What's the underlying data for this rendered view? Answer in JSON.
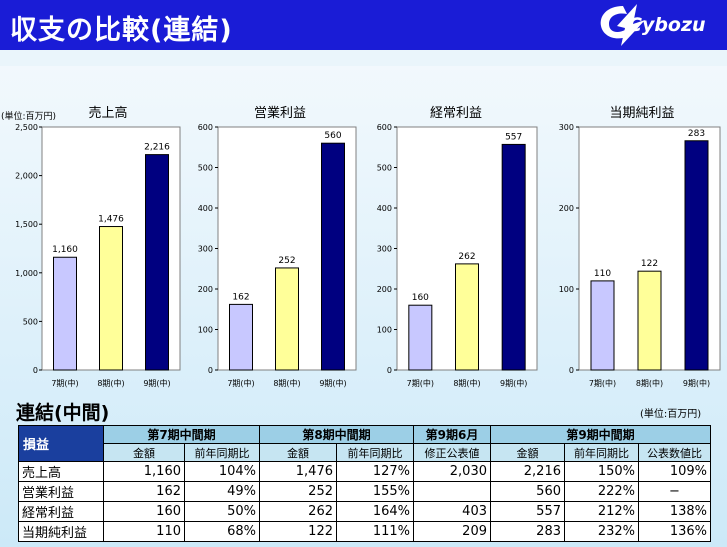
{
  "header": {
    "title": "収支の比較(連結)",
    "logo_text": "Cybozu"
  },
  "chart_unit": "(単位:百万円)",
  "chart_data": [
    {
      "type": "bar",
      "title": "売上高",
      "categories": [
        "7期(中)",
        "8期(中)",
        "9期(中)"
      ],
      "values": [
        1160,
        1476,
        2216
      ],
      "value_labels": [
        "1,160",
        "1,476",
        "2,216"
      ],
      "ylim": [
        0,
        2500
      ],
      "yticks": [
        0,
        500,
        1000,
        1500,
        2000,
        2500
      ],
      "ytick_labels": [
        "0",
        "500",
        "1,000",
        "1,500",
        "2,000",
        "2,500"
      ],
      "colors": [
        "#c8c8ff",
        "#ffff99",
        "#000080"
      ]
    },
    {
      "type": "bar",
      "title": "営業利益",
      "categories": [
        "7期(中)",
        "8期(中)",
        "9期(中)"
      ],
      "values": [
        162,
        252,
        560
      ],
      "value_labels": [
        "162",
        "252",
        "560"
      ],
      "ylim": [
        0,
        600
      ],
      "yticks": [
        0,
        100,
        200,
        300,
        400,
        500,
        600
      ],
      "ytick_labels": [
        "0",
        "100",
        "200",
        "300",
        "400",
        "500",
        "600"
      ],
      "colors": [
        "#c8c8ff",
        "#ffff99",
        "#000080"
      ]
    },
    {
      "type": "bar",
      "title": "経常利益",
      "categories": [
        "7期(中)",
        "8期(中)",
        "9期(中)"
      ],
      "values": [
        160,
        262,
        557
      ],
      "value_labels": [
        "160",
        "262",
        "557"
      ],
      "ylim": [
        0,
        600
      ],
      "yticks": [
        0,
        100,
        200,
        300,
        400,
        500,
        600
      ],
      "ytick_labels": [
        "0",
        "100",
        "200",
        "300",
        "400",
        "500",
        "600"
      ],
      "colors": [
        "#c8c8ff",
        "#ffff99",
        "#000080"
      ]
    },
    {
      "type": "bar",
      "title": "当期純利益",
      "categories": [
        "7期(中)",
        "8期(中)",
        "9期(中)"
      ],
      "values": [
        110,
        122,
        283
      ],
      "value_labels": [
        "110",
        "122",
        "283"
      ],
      "ylim": [
        0,
        300
      ],
      "yticks": [
        0,
        100,
        200,
        300
      ],
      "ytick_labels": [
        "0",
        "100",
        "200",
        "300"
      ],
      "colors": [
        "#c8c8ff",
        "#ffff99",
        "#000080"
      ]
    }
  ],
  "section": {
    "title": "連結(中間)",
    "unit": "(単位:百万円)"
  },
  "table": {
    "corner": "損益",
    "groups": [
      "第7期中間期",
      "第8期中間期",
      "第9期6月",
      "第9期中間期"
    ],
    "subheaders": [
      "金額",
      "前年同期比",
      "金額",
      "前年同期比",
      "修正公表値",
      "金額",
      "前年同期比",
      "公表数値比"
    ],
    "rows": [
      {
        "label": "売上高",
        "cells": [
          "1,160",
          "104%",
          "1,476",
          "127%",
          "2,030",
          "2,216",
          "150%",
          "109%"
        ]
      },
      {
        "label": "営業利益",
        "cells": [
          "162",
          "49%",
          "252",
          "155%",
          "",
          "560",
          "222%",
          "−"
        ]
      },
      {
        "label": "経常利益",
        "cells": [
          "160",
          "50%",
          "262",
          "164%",
          "403",
          "557",
          "212%",
          "138%"
        ]
      },
      {
        "label": "当期純利益",
        "cells": [
          "110",
          "68%",
          "122",
          "111%",
          "209",
          "283",
          "232%",
          "136%"
        ]
      }
    ]
  }
}
